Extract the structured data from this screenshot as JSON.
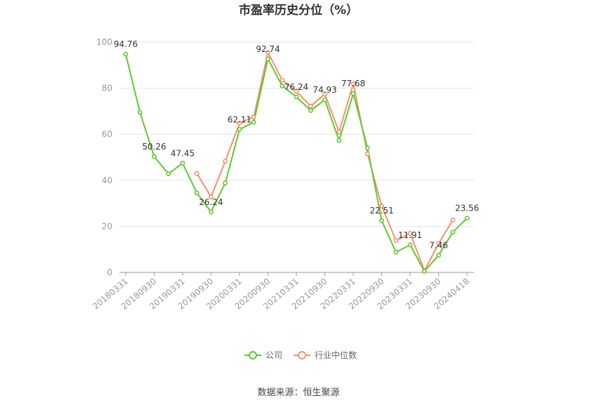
{
  "chart_data": {
    "type": "line",
    "title": "市盈率历史分位（%）",
    "ylim": [
      0,
      100
    ],
    "yticks": [
      0,
      20,
      40,
      60,
      80,
      100
    ],
    "x": [
      "20180331",
      "20180630",
      "20180930",
      "20181231",
      "20190331",
      "20190630",
      "20190930",
      "20191231",
      "20200331",
      "20200630",
      "20200930",
      "20201231",
      "20210331",
      "20210630",
      "20210930",
      "20211231",
      "20220331",
      "20220630",
      "20220930",
      "20221231",
      "20230331",
      "20230630",
      "20230930",
      "20231231",
      "20240418"
    ],
    "xtick_labels": [
      "20180331",
      "20180930",
      "20190331",
      "20190930",
      "20200331",
      "20200930",
      "20210331",
      "20210930",
      "20220331",
      "20220930",
      "20230331",
      "20230930",
      "20240418"
    ],
    "series": [
      {
        "name": "公司",
        "color": "#5ccb2c",
        "values": [
          94.76,
          69.5,
          50.26,
          42.8,
          47.45,
          34.5,
          26.24,
          38.8,
          62.11,
          65.2,
          92.74,
          81.0,
          76.24,
          70.3,
          74.93,
          57.3,
          77.68,
          54.0,
          22.51,
          8.8,
          11.91,
          0.5,
          7.46,
          17.5,
          23.56
        ]
      },
      {
        "name": "行业中位数",
        "color": "#f5916b",
        "values": [
          null,
          null,
          null,
          null,
          null,
          43.0,
          32.8,
          48.3,
          64.8,
          67.5,
          95.5,
          83.5,
          78.6,
          72.2,
          77.4,
          61.0,
          82.0,
          51.5,
          28.8,
          13.8,
          17.0,
          0.8,
          12.5,
          22.8,
          null
        ]
      }
    ],
    "data_labels": [
      {
        "index": 0,
        "text": "94.76"
      },
      {
        "index": 2,
        "text": "50.26"
      },
      {
        "index": 4,
        "text": "47.45"
      },
      {
        "index": 6,
        "text": "26.24"
      },
      {
        "index": 8,
        "text": "62.11"
      },
      {
        "index": 10,
        "text": "92.74"
      },
      {
        "index": 12,
        "text": "76.24"
      },
      {
        "index": 14,
        "text": "74.93"
      },
      {
        "index": 16,
        "text": "77.68"
      },
      {
        "index": 18,
        "text": "22.51"
      },
      {
        "index": 20,
        "text": "11.91"
      },
      {
        "index": 22,
        "text": "7.46"
      },
      {
        "index": 24,
        "text": "23.56"
      }
    ],
    "legend_position": "bottom-center",
    "grid": true
  },
  "source_text": "数据来源：恒生聚源"
}
